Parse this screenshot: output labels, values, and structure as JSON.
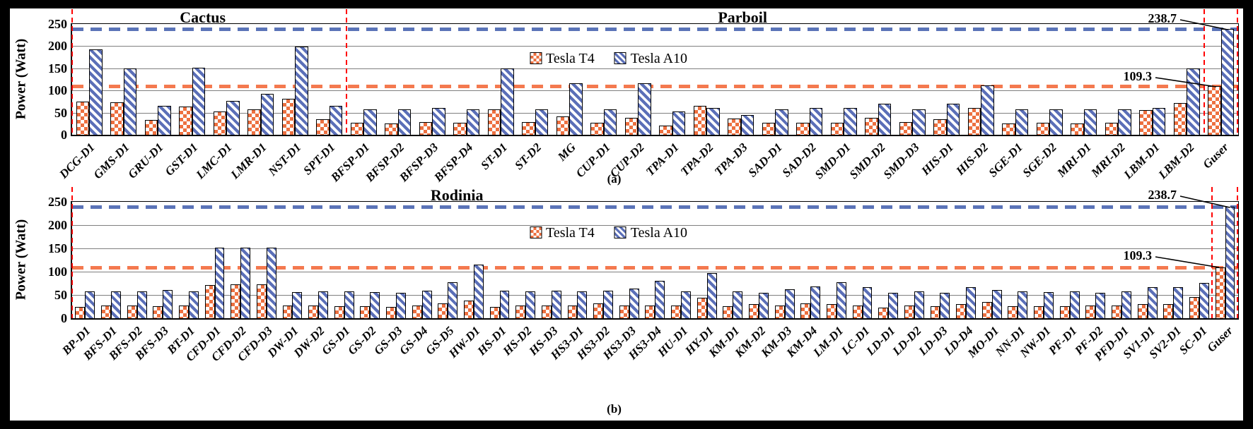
{
  "figure": {
    "ylabel": "Power (Watt)",
    "legend": [
      {
        "name": "Tesla T4"
      },
      {
        "name": "Tesla A10"
      }
    ],
    "colors": {
      "tesla_t4": "#ED7040",
      "tesla_a10": "#5B6FB8",
      "t4_dash_line": "#F4794F",
      "a10_dash_line": "#5B74B8",
      "divider_red": "#FF0000",
      "gridline": "#7F7F7F"
    }
  },
  "chart_data": [
    {
      "type": "bar",
      "sublabel": "(a)",
      "ylabel": "Power (Watt)",
      "ylim": [
        0,
        250
      ],
      "yticks": [
        0,
        50,
        100,
        150,
        200,
        250
      ],
      "grid": "horizontal",
      "legend_position": "inside-top-center",
      "sections": [
        {
          "label": "Cactus"
        },
        {
          "label": "Parboil"
        }
      ],
      "dividers": [
        0,
        8,
        33,
        34
      ],
      "categories": [
        "DCG-D1",
        "GMS-D1",
        "GRU-D1",
        "GST-D1",
        "LMC-D1",
        "LMR-D1",
        "NST-D1",
        "SPT-D1",
        "BFSP-D1",
        "BFSP-D2",
        "BFSP-D3",
        "BFSP-D4",
        "ST-D1",
        "ST-D2",
        "MG",
        "CUP-D1",
        "CUP-D2",
        "TPA-D1",
        "TPA-D2",
        "TPA-D3",
        "SAD-D1",
        "SAD-D2",
        "SMD-D1",
        "SMD-D2",
        "SMD-D3",
        "HIS-D1",
        "HIS-D2",
        "SGE-D1",
        "SGE-D2",
        "MRI-D1",
        "MRI-D2",
        "LBM-D1",
        "LBM-D2",
        "Guser"
      ],
      "series": [
        {
          "name": "Tesla T4",
          "values": [
            75,
            74,
            33,
            63,
            52,
            58,
            81,
            35,
            27,
            26,
            28,
            27,
            58,
            29,
            41,
            27,
            38,
            21,
            66,
            36,
            27,
            27,
            27,
            38,
            28,
            35,
            60,
            25,
            27,
            25,
            27,
            55,
            71,
            109.3
          ]
        },
        {
          "name": "Tesla A10",
          "values": [
            192,
            150,
            66,
            151,
            76,
            92,
            199,
            65,
            57,
            58,
            61,
            58,
            150,
            57,
            117,
            57,
            116,
            53,
            60,
            44,
            57,
            60,
            60,
            70,
            57,
            70,
            112,
            57,
            57,
            57,
            58,
            60,
            150,
            238.7
          ]
        }
      ],
      "thresholds": [
        {
          "value": 238.7,
          "color": "#5B74B8"
        },
        {
          "value": 109.3,
          "color": "#F4794F"
        }
      ],
      "annotations": [
        {
          "text": "238.7"
        },
        {
          "text": "109.3"
        }
      ]
    },
    {
      "type": "bar",
      "sublabel": "(b)",
      "ylabel": "Power (Watt)",
      "ylim": [
        0,
        250
      ],
      "yticks": [
        0,
        50,
        100,
        150,
        200,
        250
      ],
      "grid": "horizontal",
      "legend_position": "inside-top-center",
      "sections": [
        {
          "label": "Rodinia"
        }
      ],
      "dividers": [
        0,
        44,
        45
      ],
      "categories": [
        "BP-D1",
        "BFS-D1",
        "BFS-D2",
        "BFS-D3",
        "BT-D1",
        "CFD-D1",
        "CFD-D2",
        "CFD-D3",
        "DW-D1",
        "DW-D2",
        "GS-D1",
        "GS-D2",
        "GS-D3",
        "GS-D4",
        "GS-D5",
        "HW-D1",
        "HS-D1",
        "HS-D2",
        "HS-D3",
        "HS3-D1",
        "HS3-D2",
        "HS3-D3",
        "HS3-D4",
        "HU-D1",
        "HY-D1",
        "KM-D1",
        "KM-D2",
        "KM-D3",
        "KM-D4",
        "LM-D1",
        "LC-D1",
        "LD-D1",
        "LD-D2",
        "LD-D3",
        "LD-D4",
        "MO-D1",
        "NN-D1",
        "NW-D1",
        "PF-D1",
        "PF-D2",
        "PFD-D1",
        "SV1-D1",
        "SV2-D1",
        "SC-D1",
        "Guser"
      ],
      "series": [
        {
          "name": "Tesla T4",
          "values": [
            25,
            27,
            27,
            26,
            27,
            71,
            73,
            73,
            27,
            27,
            26,
            26,
            24,
            27,
            32,
            38,
            24,
            27,
            27,
            28,
            32,
            28,
            28,
            27,
            44,
            26,
            30,
            27,
            32,
            31,
            28,
            23,
            27,
            26,
            30,
            35,
            26,
            26,
            26,
            27,
            28,
            30,
            30,
            46,
            109.3
          ]
        },
        {
          "name": "Tesla A10",
          "values": [
            57,
            57,
            57,
            60,
            57,
            152,
            152,
            151,
            56,
            57,
            57,
            56,
            55,
            59,
            77,
            115,
            59,
            57,
            59,
            58,
            59,
            64,
            81,
            58,
            97,
            58,
            55,
            62,
            68,
            78,
            67,
            55,
            57,
            55,
            67,
            61,
            57,
            56,
            57,
            55,
            58,
            66,
            67,
            76,
            238.7
          ]
        }
      ],
      "thresholds": [
        {
          "value": 238.7,
          "color": "#5B74B8"
        },
        {
          "value": 109.3,
          "color": "#F4794F"
        }
      ],
      "annotations": [
        {
          "text": "238.7"
        },
        {
          "text": "109.3"
        }
      ]
    }
  ]
}
